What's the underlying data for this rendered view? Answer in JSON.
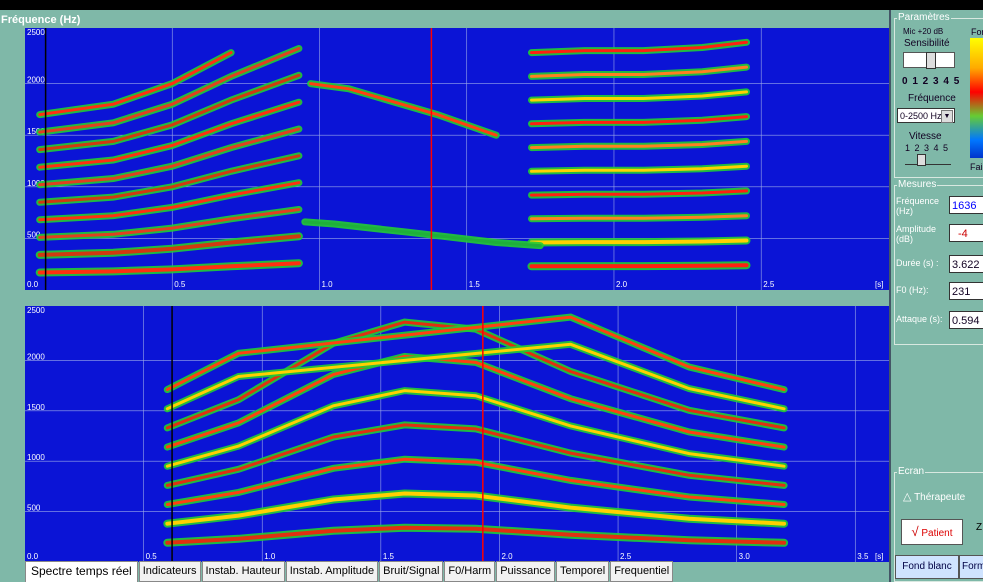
{
  "title": "Fréquence (Hz)",
  "chart_data": [
    {
      "type": "heatmap",
      "y_axis_ticks": [
        "2500",
        "2000",
        "1500",
        "1000",
        "500",
        "0.0"
      ],
      "x_axis_ticks": [
        "0.0",
        "0.5",
        "1.0",
        "1.5",
        "2.0",
        "2.5"
      ],
      "x_unit": "[s]"
    },
    {
      "type": "heatmap",
      "y_axis_ticks": [
        "2500",
        "2000",
        "1500",
        "1000",
        "500",
        "0.0"
      ],
      "x_axis_ticks": [
        "0.0",
        "0.5",
        "1.0",
        "1.5",
        "2.0",
        "2.5",
        "3.0",
        "3.5"
      ],
      "x_unit": "[s]"
    }
  ],
  "tabs": [
    "Spectre temps réel",
    "Indicateurs",
    "Instab. Hauteur",
    "Instab. Amplitude",
    "Bruit/Signal",
    "F0/Harm",
    "Puissance",
    "Temporel",
    "Frequentiel"
  ],
  "params": {
    "title": "Paramètres",
    "mic": "Mic +20 dB",
    "sensibilite": "Sensibilité",
    "scale_main": "0 1 2 3 4 5",
    "frequence_label": "Fréquence",
    "frequence_value": "0-2500 Hz",
    "vitesse": "Vitesse",
    "scale_small": "1 2 3 4 5",
    "fort": "Fort",
    "faible": "Fai"
  },
  "mesures": {
    "title": "Mesures",
    "frequence_label": "Fréquence (Hz)",
    "frequence_value": "1636",
    "amplitude_label": "Amplitude (dB)",
    "amplitude_value": "-4",
    "duree_label": "Durée (s) :",
    "duree_value": "3.622",
    "f0_label": "F0 (Hz):",
    "f0_value": "231",
    "attaque_label": "Attaque (s):",
    "attaque_value": "0.594"
  },
  "ecran": {
    "title": "Ecran",
    "therapeute": "Thérapeute",
    "patient": "Patient",
    "z": "Z",
    "fond_blanc": "Fond blanc",
    "form": "Form"
  }
}
